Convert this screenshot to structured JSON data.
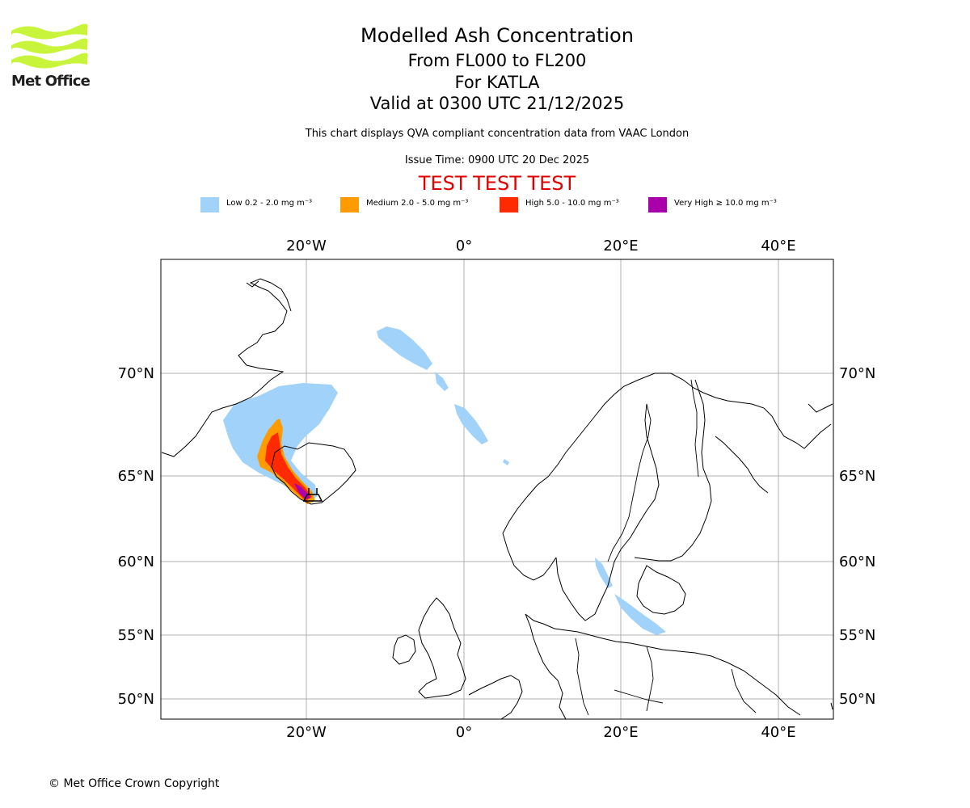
{
  "logo": {
    "text": "Met Office",
    "icon": "met-office-wave-logo",
    "color": "#c8f53c"
  },
  "title": {
    "line1": "Modelled Ash Concentration",
    "line2": "From FL000 to FL200",
    "line3": "For KATLA",
    "line4": "Valid at 0300 UTC 21/12/2025"
  },
  "subtitle": "This chart displays QVA compliant concentration data from VAAC London",
  "issue_time": "Issue Time: 0900 UTC 20 Dec 2025",
  "test_banner": "TEST TEST TEST",
  "legend": [
    {
      "label": "Low 0.2 - 2.0 mg m⁻³",
      "color": "#a0d2fa"
    },
    {
      "label": "Medium 2.0 - 5.0 mg m⁻³",
      "color": "#ff9a00"
    },
    {
      "label": "High 5.0 - 10.0 mg m⁻³",
      "color": "#ff2a00"
    },
    {
      "label": "Very High  ≥  10.0 mg m⁻³",
      "color": "#aa00aa"
    }
  ],
  "map": {
    "longitude_labels": [
      "20°W",
      "0°",
      "20°E",
      "40°E"
    ],
    "latitude_labels": [
      "70°N",
      "65°N",
      "60°N",
      "55°N",
      "50°N"
    ],
    "volcano": "KATLA",
    "grid": true
  },
  "copyright": "© Met Office Crown Copyright"
}
